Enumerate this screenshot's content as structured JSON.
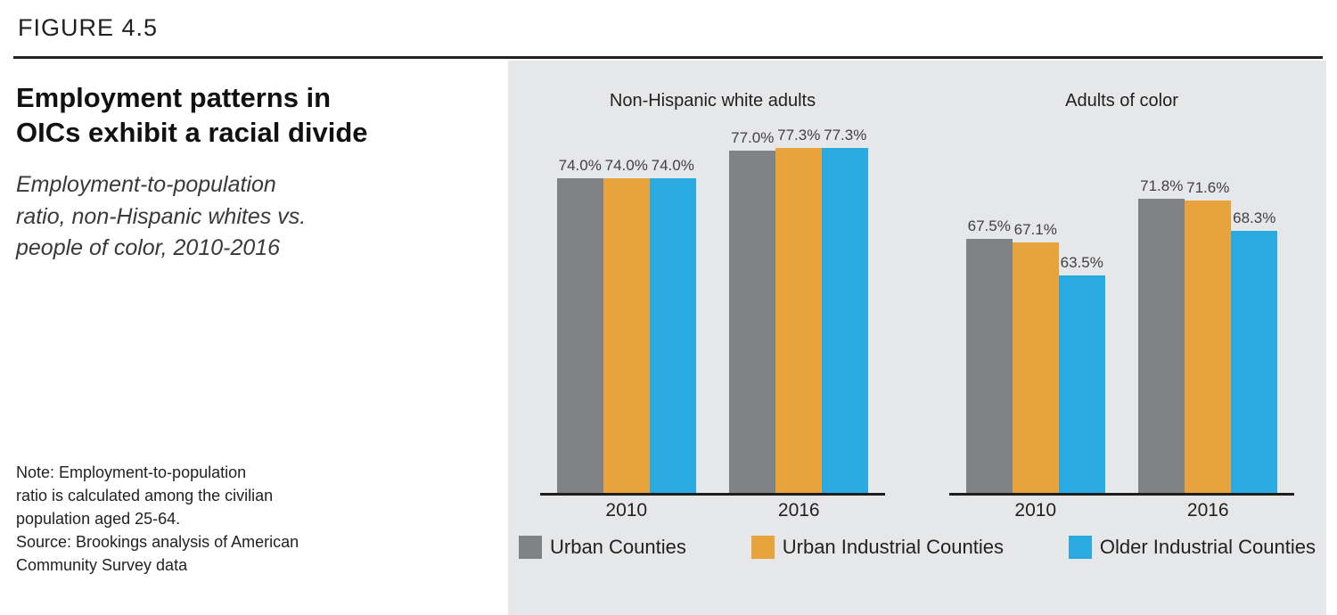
{
  "figure_label": "FIGURE 4.5",
  "colors": {
    "urban": "#808285",
    "urban_industrial": "#E9A33D",
    "older_industrial": "#29ABE2",
    "panel_background": "#E6E7E8",
    "axis": "#1e1e1e",
    "text_dark": "#231F20"
  },
  "left_panel": {
    "title_lines": [
      "Employment patterns in",
      "OICs exhibit a racial divide"
    ],
    "subtitle_lines": [
      "Employment-to-population",
      "ratio, non-Hispanic whites vs.",
      "people of color, 2010-2016"
    ],
    "note_lines": [
      "Note: Employment-to-population",
      "ratio is calculated among the civilian",
      "population aged 25-64.",
      "Source: Brookings analysis of American",
      "Community Survey data"
    ]
  },
  "legend": [
    {
      "label": "Urban Counties",
      "color_key": "urban"
    },
    {
      "label": "Urban Industrial Counties",
      "color_key": "urban_industrial"
    },
    {
      "label": "Older Industrial Counties",
      "color_key": "older_industrial"
    }
  ],
  "chart_data": [
    {
      "type": "bar",
      "title": "Non-Hispanic white adults",
      "categories": [
        "2010",
        "2016"
      ],
      "series": [
        {
          "name": "Urban Counties",
          "color_key": "urban",
          "values": [
            74.0,
            77.0
          ]
        },
        {
          "name": "Urban Industrial Counties",
          "color_key": "urban_industrial",
          "values": [
            74.0,
            77.3
          ]
        },
        {
          "name": "Older Industrial Counties",
          "color_key": "older_industrial",
          "values": [
            74.0,
            77.3
          ]
        }
      ],
      "value_labels": [
        [
          "74.0%",
          "74.0%",
          "74.0%"
        ],
        [
          "77.0%",
          "77.3%",
          "77.3%"
        ]
      ],
      "ylim": [
        40,
        80
      ],
      "grid": false,
      "legend_position": "bottom"
    },
    {
      "type": "bar",
      "title": "Adults of color",
      "categories": [
        "2010",
        "2016"
      ],
      "series": [
        {
          "name": "Urban Counties",
          "color_key": "urban",
          "values": [
            67.5,
            71.8
          ]
        },
        {
          "name": "Urban Industrial Counties",
          "color_key": "urban_industrial",
          "values": [
            67.1,
            71.6
          ]
        },
        {
          "name": "Older Industrial Counties",
          "color_key": "older_industrial",
          "values": [
            63.5,
            68.3
          ]
        }
      ],
      "value_labels": [
        [
          "67.5%",
          "67.1%",
          "63.5%"
        ],
        [
          "71.8%",
          "71.6%",
          "68.3%"
        ]
      ],
      "ylim": [
        40,
        80
      ],
      "grid": false,
      "legend_position": "bottom"
    }
  ]
}
